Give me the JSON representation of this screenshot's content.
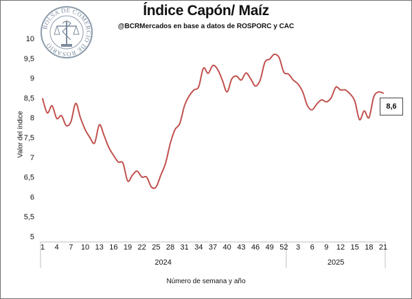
{
  "title": "Índice Capón/ Maíz",
  "subtitle": "@BCRMercados  en base a datos de ROSPORC y CAC",
  "logo_text": "BOLSA DE COMERCIO DE ROSARIO",
  "last_value_label": "8,6",
  "colors": {
    "line": "#c0504d",
    "axis": "#bfbfbf",
    "text": "#111111"
  },
  "chart_data": {
    "type": "line",
    "ylabel": "Valor del índice",
    "xlabel": "Número de semana y año",
    "ylim": [
      5,
      10
    ],
    "yticks": [
      "5",
      "5,5",
      "6",
      "6,5",
      "7",
      "7,5",
      "8",
      "8,5",
      "9",
      "9,5",
      "10"
    ],
    "grid": false,
    "years": [
      {
        "label": "2024",
        "first_index": 0,
        "last_index": 51
      },
      {
        "label": "2025",
        "first_index": 52,
        "last_index": 72
      }
    ],
    "x_tick_labels": [
      {
        "index": 0,
        "label": "1"
      },
      {
        "index": 3,
        "label": "4"
      },
      {
        "index": 6,
        "label": "7"
      },
      {
        "index": 9,
        "label": "10"
      },
      {
        "index": 12,
        "label": "13"
      },
      {
        "index": 15,
        "label": "16"
      },
      {
        "index": 18,
        "label": "19"
      },
      {
        "index": 21,
        "label": "22"
      },
      {
        "index": 24,
        "label": "25"
      },
      {
        "index": 27,
        "label": "28"
      },
      {
        "index": 30,
        "label": "31"
      },
      {
        "index": 33,
        "label": "34"
      },
      {
        "index": 36,
        "label": "37"
      },
      {
        "index": 39,
        "label": "40"
      },
      {
        "index": 42,
        "label": "43"
      },
      {
        "index": 45,
        "label": "46"
      },
      {
        "index": 48,
        "label": "49"
      },
      {
        "index": 51,
        "label": "52"
      },
      {
        "index": 54,
        "label": "3"
      },
      {
        "index": 57,
        "label": "6"
      },
      {
        "index": 60,
        "label": "9"
      },
      {
        "index": 63,
        "label": "12"
      },
      {
        "index": 66,
        "label": "15"
      },
      {
        "index": 69,
        "label": "18"
      },
      {
        "index": 72,
        "label": "21"
      }
    ],
    "series": [
      {
        "values": [
          8.48,
          8.12,
          8.3,
          7.98,
          8.05,
          7.8,
          7.9,
          8.36,
          8.0,
          7.7,
          7.5,
          7.36,
          7.82,
          7.55,
          7.25,
          7.05,
          6.88,
          6.85,
          6.4,
          6.55,
          6.65,
          6.5,
          6.5,
          6.25,
          6.25,
          6.55,
          6.85,
          7.35,
          7.7,
          7.85,
          8.3,
          8.55,
          8.7,
          8.78,
          9.25,
          9.12,
          9.32,
          9.22,
          8.95,
          8.65,
          8.98,
          9.05,
          8.95,
          9.13,
          8.98,
          8.8,
          8.95,
          9.4,
          9.48,
          9.6,
          9.52,
          9.15,
          9.1,
          8.95,
          8.85,
          8.65,
          8.3,
          8.2,
          8.35,
          8.45,
          8.4,
          8.5,
          8.77,
          8.7,
          8.7,
          8.6,
          8.42,
          7.95,
          8.17,
          8.0,
          8.52,
          8.65,
          8.62
        ]
      }
    ]
  }
}
